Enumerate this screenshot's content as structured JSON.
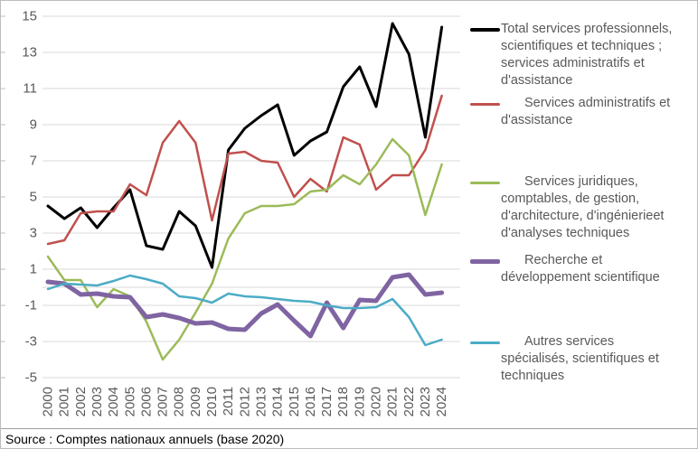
{
  "chart_data": {
    "type": "line",
    "title": "",
    "xlabel": "",
    "ylabel": "",
    "x": [
      2000,
      2001,
      2002,
      2003,
      2004,
      2005,
      2006,
      2007,
      2008,
      2009,
      2010,
      2011,
      2012,
      2013,
      2014,
      2015,
      2016,
      2017,
      2018,
      2019,
      2020,
      2021,
      2022,
      2023,
      2024
    ],
    "ylim": [
      -5,
      15
    ],
    "yticks": [
      15,
      13,
      11,
      9,
      7,
      5,
      3,
      1,
      -1,
      -3,
      -5
    ],
    "grid": true,
    "zero_axis": true,
    "legend_position": "right",
    "grid_color": "#d9d9d9",
    "axis_text_color": "#595959",
    "series": [
      {
        "key": "total",
        "name": "Total services professionnels, scientifiques et techniques ; services administratifs et d'assistance",
        "label_lines": [
          "Total services professionnels,",
          "scientifiques et techniques ;",
          "services administratifs et",
          "d'assistance"
        ],
        "color": "#000000",
        "values": [
          4.5,
          3.8,
          4.4,
          3.3,
          4.4,
          5.4,
          2.3,
          2.1,
          4.2,
          3.4,
          1.1,
          7.6,
          8.8,
          9.5,
          10.1,
          7.3,
          8.1,
          8.6,
          11.1,
          12.2,
          10.0,
          14.6,
          12.9,
          8.3,
          14.4
        ]
      },
      {
        "key": "admin",
        "name": "Services administratifs et d'assistance",
        "label_lines": [
          "Services administratifs et",
          "d'assistance"
        ],
        "color": "#C0504D",
        "values": [
          2.4,
          2.6,
          4.1,
          4.2,
          4.2,
          5.7,
          5.1,
          8.0,
          9.2,
          8.0,
          3.7,
          7.4,
          7.5,
          7.0,
          6.9,
          5.0,
          6.0,
          5.3,
          8.3,
          7.9,
          5.4,
          6.2,
          6.2,
          7.6,
          10.6
        ]
      },
      {
        "key": "juridiques",
        "name": "Services juridiques, comptables, de gestion, d'architecture, d'ingénierieet d'analyses techniques",
        "label_lines": [
          "Services juridiques,",
          "comptables, de gestion,",
          "d'architecture, d'ingénierieet",
          "d'analyses techniques"
        ],
        "color": "#9BBB59",
        "values": [
          1.7,
          0.4,
          0.4,
          -1.1,
          -0.1,
          -0.5,
          -1.9,
          -4.0,
          -2.9,
          -1.4,
          0.2,
          2.7,
          4.1,
          4.5,
          4.5,
          4.6,
          5.3,
          5.4,
          6.2,
          5.7,
          6.8,
          8.2,
          7.3,
          4.0,
          6.8
        ]
      },
      {
        "key": "recherche",
        "name": "Recherche et développement scientifique",
        "label_lines": [
          "Recherche et",
          "développement scientifique"
        ],
        "color": "#8064A2",
        "values": [
          0.3,
          0.2,
          -0.4,
          -0.35,
          -0.5,
          -0.55,
          -1.65,
          -1.5,
          -1.7,
          -2.0,
          -1.95,
          -2.3,
          -2.35,
          -1.45,
          -0.95,
          -1.85,
          -2.7,
          -0.85,
          -2.25,
          -0.7,
          -0.75,
          0.55,
          0.7,
          -0.4,
          -0.3
        ]
      },
      {
        "key": "autres",
        "name": "Autres services spécialisés, scientifiques et techniques",
        "label_lines": [
          "Autres services",
          "spécialisés, scientifiques et",
          "techniques"
        ],
        "color": "#4BACC6",
        "values": [
          -0.1,
          0.2,
          0.15,
          0.1,
          0.35,
          0.65,
          0.45,
          0.2,
          -0.5,
          -0.6,
          -0.85,
          -0.35,
          -0.5,
          -0.55,
          -0.65,
          -0.75,
          -0.8,
          -1.0,
          -1.15,
          -1.15,
          -1.1,
          -0.65,
          -1.65,
          -3.2,
          -2.9
        ]
      }
    ]
  },
  "source": {
    "text": "Source : Comptes nationaux annuels (base 2020)"
  }
}
